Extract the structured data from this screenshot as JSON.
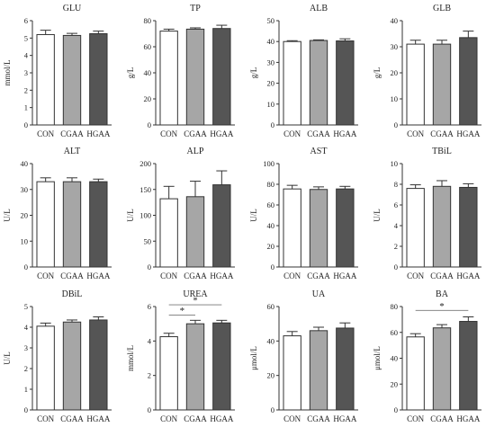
{
  "colors": {
    "CON": "#ffffff",
    "CGAA": "#a6a6a6",
    "HGAA": "#555555",
    "stroke": "#333333"
  },
  "chart_data": [
    {
      "type": "bar",
      "title": "GLU",
      "ylabel": "mmol/L",
      "ylim": [
        0,
        6
      ],
      "yticks": [
        0,
        1,
        2,
        3,
        4,
        5,
        6
      ],
      "categories": [
        "CON",
        "CGAA",
        "HGAA"
      ],
      "values": [
        5.2,
        5.15,
        5.25
      ],
      "errors": [
        0.25,
        0.12,
        0.15
      ],
      "significance": []
    },
    {
      "type": "bar",
      "title": "TP",
      "ylabel": "g/L",
      "ylim": [
        0,
        80
      ],
      "yticks": [
        0,
        20,
        40,
        60,
        80
      ],
      "categories": [
        "CON",
        "CGAA",
        "HGAA"
      ],
      "values": [
        72,
        73.5,
        74
      ],
      "errors": [
        1.5,
        1.0,
        2.5
      ],
      "significance": []
    },
    {
      "type": "bar",
      "title": "ALB",
      "ylabel": "g/L",
      "ylim": [
        0,
        50
      ],
      "yticks": [
        0,
        10,
        20,
        30,
        40,
        50
      ],
      "categories": [
        "CON",
        "CGAA",
        "HGAA"
      ],
      "values": [
        40,
        40.5,
        40.3
      ],
      "errors": [
        0.4,
        0.3,
        1.0
      ],
      "significance": []
    },
    {
      "type": "bar",
      "title": "GLB",
      "ylabel": "g/L",
      "ylim": [
        0,
        40
      ],
      "yticks": [
        0,
        10,
        20,
        30,
        40
      ],
      "categories": [
        "CON",
        "CGAA",
        "HGAA"
      ],
      "values": [
        31,
        31,
        33.5
      ],
      "errors": [
        1.5,
        1.5,
        2.5
      ],
      "significance": []
    },
    {
      "type": "bar",
      "title": "ALT",
      "ylabel": "U/L",
      "ylim": [
        0,
        40
      ],
      "yticks": [
        0,
        10,
        20,
        30,
        40
      ],
      "categories": [
        "CON",
        "CGAA",
        "HGAA"
      ],
      "values": [
        33,
        33,
        33
      ],
      "errors": [
        1.5,
        1.5,
        1.0
      ],
      "significance": []
    },
    {
      "type": "bar",
      "title": "ALP",
      "ylabel": "U/L",
      "ylim": [
        0,
        200
      ],
      "yticks": [
        0,
        50,
        100,
        150,
        200
      ],
      "categories": [
        "CON",
        "CGAA",
        "HGAA"
      ],
      "values": [
        132,
        136,
        159
      ],
      "errors": [
        24,
        30,
        27
      ],
      "significance": []
    },
    {
      "type": "bar",
      "title": "AST",
      "ylabel": "U/L",
      "ylim": [
        0,
        100
      ],
      "yticks": [
        0,
        20,
        40,
        60,
        80,
        100
      ],
      "categories": [
        "CON",
        "CGAA",
        "HGAA"
      ],
      "values": [
        75.5,
        75,
        75.5
      ],
      "errors": [
        3.5,
        2.5,
        2.5
      ],
      "significance": []
    },
    {
      "type": "bar",
      "title": "TBiL",
      "ylabel": "U/L",
      "ylim": [
        0,
        10
      ],
      "yticks": [
        0,
        2,
        4,
        6,
        8,
        10
      ],
      "categories": [
        "CON",
        "CGAA",
        "HGAA"
      ],
      "values": [
        7.6,
        7.8,
        7.7
      ],
      "errors": [
        0.35,
        0.55,
        0.35
      ],
      "significance": []
    },
    {
      "type": "bar",
      "title": "DBiL",
      "ylabel": "U/L",
      "ylim": [
        0,
        5
      ],
      "yticks": [
        0,
        1,
        2,
        3,
        4,
        5
      ],
      "categories": [
        "CON",
        "CGAA",
        "HGAA"
      ],
      "values": [
        4.05,
        4.25,
        4.35
      ],
      "errors": [
        0.15,
        0.1,
        0.15
      ],
      "significance": []
    },
    {
      "type": "bar",
      "title": "UREA",
      "ylabel": "mmol/L",
      "ylim": [
        0,
        6
      ],
      "yticks": [
        0,
        2,
        4,
        6
      ],
      "categories": [
        "CON",
        "CGAA",
        "HGAA"
      ],
      "values": [
        4.25,
        5.0,
        5.05
      ],
      "errors": [
        0.2,
        0.2,
        0.15
      ],
      "significance": [
        {
          "from": 0,
          "to": 1,
          "y": 5.5,
          "label": "*"
        },
        {
          "from": 0,
          "to": 2,
          "y": 6.1,
          "label": "*"
        }
      ]
    },
    {
      "type": "bar",
      "title": "UA",
      "ylabel": "μmol/L",
      "ylim": [
        0,
        60
      ],
      "yticks": [
        0,
        20,
        40,
        60
      ],
      "categories": [
        "CON",
        "CGAA",
        "HGAA"
      ],
      "values": [
        43,
        46,
        47.5
      ],
      "errors": [
        2.5,
        2.0,
        3.0
      ],
      "significance": []
    },
    {
      "type": "bar",
      "title": "BA",
      "ylabel": "μmol/L",
      "ylim": [
        0,
        80
      ],
      "yticks": [
        0,
        20,
        40,
        60,
        80
      ],
      "categories": [
        "CON",
        "CGAA",
        "HGAA"
      ],
      "values": [
        56.5,
        63.5,
        68.5
      ],
      "errors": [
        2.5,
        2.5,
        3.5
      ],
      "significance": [
        {
          "from": 0,
          "to": 2,
          "y": 77,
          "label": "*"
        }
      ]
    }
  ]
}
